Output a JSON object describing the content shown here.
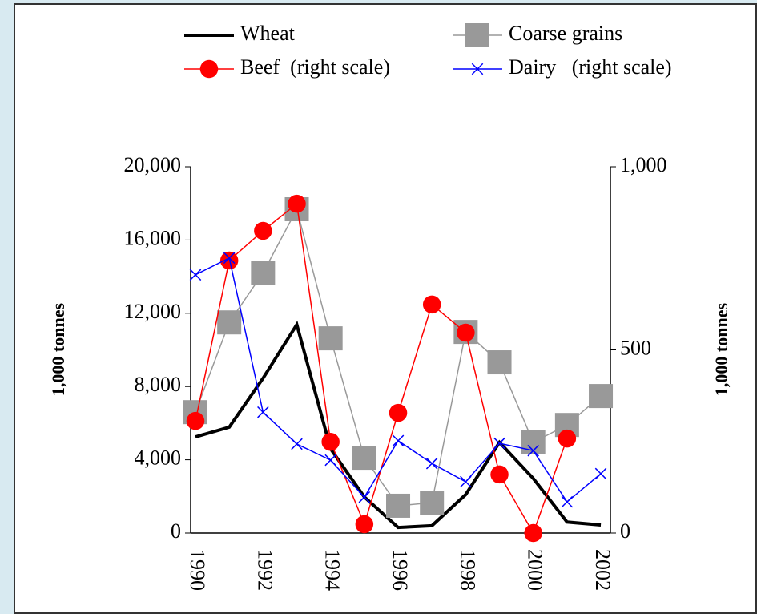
{
  "chart_data": {
    "type": "line",
    "categories": [
      "1990",
      null,
      "1992",
      null,
      "1994",
      null,
      "1996",
      null,
      "1998",
      null,
      "2000",
      null,
      "2002"
    ],
    "y_label": "1,000 tonnes",
    "y2_label": "1,000 tonnes",
    "ylim": [
      0,
      20000
    ],
    "yticks": [
      0,
      {
        "value": 4000,
        "label": "4,000"
      },
      {
        "value": 8000,
        "label": "8,000"
      },
      {
        "value": 12000,
        "label": "12,000"
      },
      {
        "value": 16000,
        "label": "16,000"
      },
      {
        "value": 20000,
        "label": "20,000"
      }
    ],
    "y2lim": [
      0,
      1000
    ],
    "y2ticks": [
      0,
      500,
      {
        "value": 1000,
        "label": "1,000"
      }
    ],
    "series": [
      {
        "name": "Wheat",
        "color": "#000000",
        "marker": "none",
        "values": [
          5250,
          5780,
          8450,
          11380,
          4600,
          1970,
          300,
          400,
          2100,
          4950,
          2980,
          600,
          440
        ]
      },
      {
        "name": "Coarse grains",
        "color": "#999999",
        "marker": "square",
        "values": [
          6600,
          11500,
          14200,
          17680,
          10630,
          4110,
          1490,
          1660,
          10980,
          9320,
          4950,
          5900,
          7480
        ]
      },
      {
        "name": "Beef  (right scale)",
        "color": "#ff0000",
        "marker": "circle",
        "axis": "y2",
        "values": [
          306,
          744,
          825,
          899,
          249,
          24,
          328,
          624,
          547,
          160,
          0,
          258,
          null
        ]
      },
      {
        "name": "Dairy   (right scale)",
        "color": "#0000ff",
        "marker": "x",
        "axis": "y2",
        "values": [
          705,
          751,
          330,
          243,
          199,
          98,
          252,
          190,
          140,
          245,
          225,
          85,
          162
        ]
      }
    ]
  }
}
